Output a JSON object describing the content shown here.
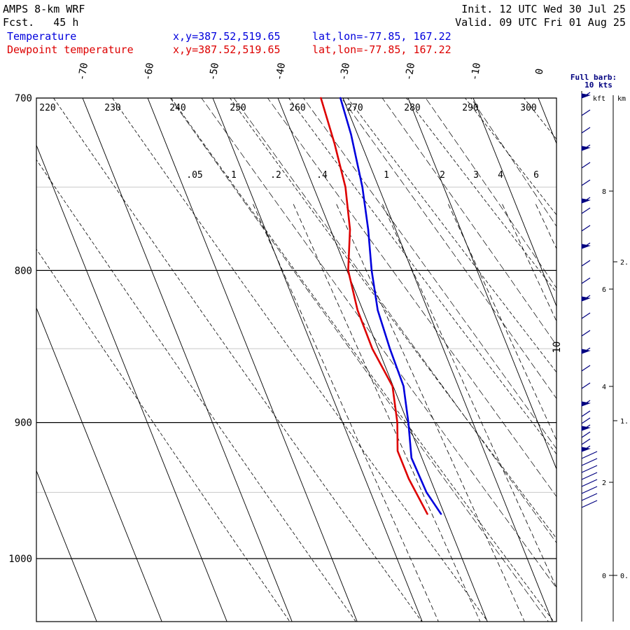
{
  "header": {
    "model": "AMPS 8-km WRF",
    "fcst_label": "Fcst.",
    "fcst_hours": "45 h",
    "init": "Init. 12 UTC Wed 30 Jul 25",
    "valid": "Valid. 09 UTC Fri 01 Aug 25",
    "legend": [
      {
        "name": "Temperature",
        "xy": "x,y=387.52,519.65",
        "latlon": "lat,lon=-77.85, 167.22",
        "color": "#0000dd"
      },
      {
        "name": "Dewpoint temperature",
        "xy": "x,y=387.52,519.65",
        "latlon": "lat,lon=-77.85, 167.22",
        "color": "#dd0000"
      }
    ]
  },
  "chart_data": {
    "type": "line",
    "title": "AMPS 8-km WRF",
    "skew_t": true,
    "pressure_axis_labels": [
      "700",
      "800",
      "900",
      "1000"
    ],
    "pressure_range_hpa": [
      700,
      1040
    ],
    "isotherm_labels": [
      "-70",
      "-60",
      "-50",
      "-40",
      "-30",
      "-20",
      "-10",
      "0"
    ],
    "theta_labels": [
      "220",
      "230",
      "240",
      "250",
      "260",
      "270",
      "280",
      "290",
      "300"
    ],
    "mixing_ratio_labels": [
      ".05",
      ".1",
      ".2",
      ".4",
      "1",
      "2",
      "3",
      "4",
      "6"
    ],
    "rotated_label": "10",
    "series": [
      {
        "name": "Temperature",
        "color": "#0000dd",
        "points": [
          [
            700,
            -30.4
          ],
          [
            720,
            -31.0
          ],
          [
            750,
            -32.5
          ],
          [
            775,
            -34.2
          ],
          [
            800,
            -36.2
          ],
          [
            825,
            -37.7
          ],
          [
            850,
            -38.2
          ],
          [
            875,
            -38.4
          ],
          [
            900,
            -39.9
          ],
          [
            925,
            -41.6
          ],
          [
            950,
            -41.4
          ],
          [
            966,
            -40.5
          ]
        ]
      },
      {
        "name": "Dewpoint temperature",
        "color": "#dd0000",
        "points": [
          [
            700,
            -33.4
          ],
          [
            725,
            -34.1
          ],
          [
            750,
            -35.1
          ],
          [
            775,
            -37.0
          ],
          [
            800,
            -39.8
          ],
          [
            825,
            -40.8
          ],
          [
            850,
            -40.9
          ],
          [
            875,
            -40.1
          ],
          [
            900,
            -41.6
          ],
          [
            920,
            -43.3
          ],
          [
            940,
            -43.3
          ],
          [
            966,
            -42.6
          ]
        ]
      }
    ],
    "wind_panel": {
      "title": "Full barb:",
      "subtitle": "10 kts",
      "kft_label": "kft",
      "km_label": "km",
      "kft_ticks": [
        "8",
        "6",
        "4",
        "2",
        "0"
      ],
      "km_ticks": [
        "2.",
        "1.",
        "0."
      ]
    }
  }
}
